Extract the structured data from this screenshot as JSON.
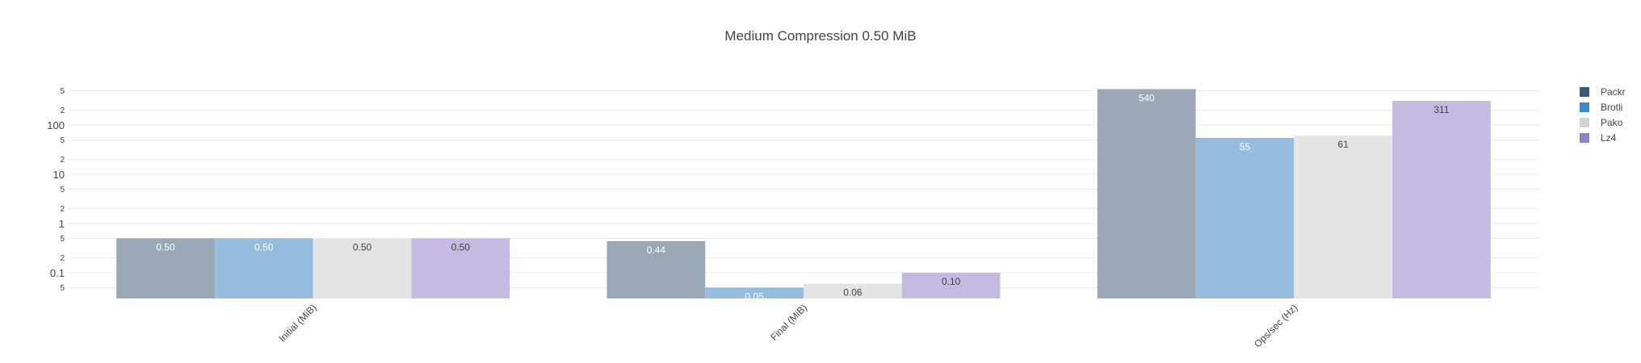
{
  "chart_data": {
    "type": "bar",
    "title": "Medium Compression 0.50 MiB",
    "xlabel": "",
    "ylabel": "",
    "yscale": "log",
    "ylim": [
      0.03,
      800
    ],
    "grid": true,
    "legend_position": "top-right",
    "categories": [
      "Initial (MiB)",
      "Final (MiB)",
      "Ops/sec (Hz)"
    ],
    "y_major_ticks": [
      {
        "value": 0.1,
        "label": "0.1"
      },
      {
        "value": 1,
        "label": "1"
      },
      {
        "value": 10,
        "label": "10"
      },
      {
        "value": 100,
        "label": "100"
      }
    ],
    "y_minor_ticks": [
      {
        "value": 0.05,
        "label": "5"
      },
      {
        "value": 0.2,
        "label": "2"
      },
      {
        "value": 0.5,
        "label": "5"
      },
      {
        "value": 2,
        "label": "2"
      },
      {
        "value": 5,
        "label": "5"
      },
      {
        "value": 20,
        "label": "2"
      },
      {
        "value": 50,
        "label": "5"
      },
      {
        "value": 200,
        "label": "2"
      },
      {
        "value": 500,
        "label": "5"
      }
    ],
    "series": [
      {
        "name": "Packr",
        "color": "#3d5a78",
        "bar_color": "#9aa8b5",
        "label_color": "#ffffff",
        "values": [
          0.5,
          0.44,
          540
        ],
        "labels": [
          "0.50",
          "0.44",
          "540"
        ]
      },
      {
        "name": "Brotli",
        "color": "#3a8ac4",
        "bar_color": "#96bddf",
        "label_color": "#ffffff",
        "values": [
          0.5,
          0.05,
          55
        ],
        "labels": [
          "0.50",
          "0.05",
          "55"
        ]
      },
      {
        "name": "Pako",
        "color": "#d2d2d2",
        "bar_color": "#e4e4e4",
        "label_color": "#444444",
        "values": [
          0.5,
          0.06,
          61
        ],
        "labels": [
          "0.50",
          "0.06",
          "61"
        ]
      },
      {
        "name": "Lz4",
        "color": "#9080c8",
        "bar_color": "#c4bae2",
        "label_color": "#444444",
        "values": [
          0.5,
          0.1,
          311
        ],
        "labels": [
          "0.50",
          "0.10",
          "311"
        ]
      }
    ]
  }
}
